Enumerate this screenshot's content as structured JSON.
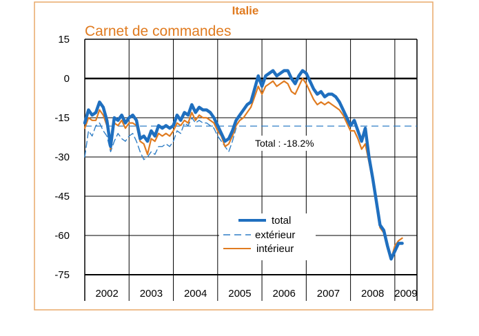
{
  "chart_data": {
    "type": "line",
    "title": "Italie",
    "subtitle": "Carnet de commandes",
    "xlabel": "",
    "ylabel": "",
    "ylim": [
      -75,
      15
    ],
    "yticks": [
      15,
      0,
      -15,
      -30,
      -45,
      -60,
      -75
    ],
    "year_labels": [
      "2002",
      "2003",
      "2004",
      "2005",
      "2006",
      "2007",
      "2008",
      "2009"
    ],
    "x_range": [
      "2002-01",
      "2009-07"
    ],
    "grid": true,
    "legend_position": "bottom-center",
    "annotation": {
      "text": "Total : -18.2%",
      "value": -18.2
    },
    "colors": {
      "total": "#1f6fbf",
      "exterieur": "#2e7dc5",
      "interieur": "#e07b20",
      "title": "#e07b20",
      "frame": "#e8a868"
    },
    "series": [
      {
        "name": "total",
        "style": "solid-thick",
        "color": "#1f6fbf",
        "points": [
          [
            "2002-01",
            -17
          ],
          [
            "2002-02",
            -12
          ],
          [
            "2002-03",
            -14
          ],
          [
            "2002-04",
            -13
          ],
          [
            "2002-05",
            -9
          ],
          [
            "2002-06",
            -11
          ],
          [
            "2002-07",
            -16
          ],
          [
            "2002-08",
            -26
          ],
          [
            "2002-09",
            -15
          ],
          [
            "2002-10",
            -16
          ],
          [
            "2002-11",
            -14
          ],
          [
            "2002-12",
            -17
          ],
          [
            "2003-01",
            -15
          ],
          [
            "2003-02",
            -14
          ],
          [
            "2003-03",
            -16
          ],
          [
            "2003-04",
            -23
          ],
          [
            "2003-05",
            -22
          ],
          [
            "2003-06",
            -24
          ],
          [
            "2003-07",
            -20
          ],
          [
            "2003-08",
            -22
          ],
          [
            "2003-09",
            -18
          ],
          [
            "2003-10",
            -19
          ],
          [
            "2003-11",
            -18
          ],
          [
            "2003-12",
            -19
          ],
          [
            "2004-01",
            -18
          ],
          [
            "2004-02",
            -14
          ],
          [
            "2004-03",
            -16
          ],
          [
            "2004-04",
            -13
          ],
          [
            "2004-05",
            -14
          ],
          [
            "2004-06",
            -10
          ],
          [
            "2004-07",
            -13
          ],
          [
            "2004-08",
            -11
          ],
          [
            "2004-09",
            -12
          ],
          [
            "2004-10",
            -12
          ],
          [
            "2004-11",
            -13
          ],
          [
            "2004-12",
            -15
          ],
          [
            "2005-01",
            -18
          ],
          [
            "2005-02",
            -21
          ],
          [
            "2005-03",
            -24
          ],
          [
            "2005-04",
            -23
          ],
          [
            "2005-05",
            -20
          ],
          [
            "2005-06",
            -16
          ],
          [
            "2005-07",
            -14
          ],
          [
            "2005-08",
            -12
          ],
          [
            "2005-09",
            -10
          ],
          [
            "2005-10",
            -9
          ],
          [
            "2005-11",
            -4
          ],
          [
            "2005-12",
            1
          ],
          [
            "2006-01",
            -3
          ],
          [
            "2006-02",
            1
          ],
          [
            "2006-03",
            2
          ],
          [
            "2006-04",
            3
          ],
          [
            "2006-05",
            1
          ],
          [
            "2006-06",
            2
          ],
          [
            "2006-07",
            3
          ],
          [
            "2006-08",
            3
          ],
          [
            "2006-09",
            0
          ],
          [
            "2006-10",
            -2
          ],
          [
            "2006-11",
            1
          ],
          [
            "2006-12",
            3
          ],
          [
            "2007-01",
            2
          ],
          [
            "2007-02",
            -1
          ],
          [
            "2007-03",
            -4
          ],
          [
            "2007-04",
            -6
          ],
          [
            "2007-05",
            -5
          ],
          [
            "2007-06",
            -7
          ],
          [
            "2007-07",
            -6
          ],
          [
            "2007-08",
            -6
          ],
          [
            "2007-09",
            -7
          ],
          [
            "2007-10",
            -9
          ],
          [
            "2007-11",
            -12
          ],
          [
            "2007-12",
            -15
          ],
          [
            "2008-01",
            -18
          ],
          [
            "2008-02",
            -16
          ],
          [
            "2008-03",
            -20
          ],
          [
            "2008-04",
            -24
          ],
          [
            "2008-05",
            -19
          ],
          [
            "2008-06",
            -30
          ],
          [
            "2008-07",
            -38
          ],
          [
            "2008-08",
            -47
          ],
          [
            "2008-09",
            -56
          ],
          [
            "2008-10",
            -58
          ],
          [
            "2008-11",
            -64
          ],
          [
            "2008-12",
            -69
          ],
          [
            "2009-01",
            -66
          ],
          [
            "2009-02",
            -63
          ],
          [
            "2009-03",
            -63
          ]
        ]
      },
      {
        "name": "extérieur",
        "style": "dashed",
        "color": "#2e7dc5",
        "points": [
          [
            "2002-01",
            -30
          ],
          [
            "2002-02",
            -20
          ],
          [
            "2002-03",
            -22
          ],
          [
            "2002-04",
            -18
          ],
          [
            "2002-05",
            -17
          ],
          [
            "2002-06",
            -20
          ],
          [
            "2002-07",
            -22
          ],
          [
            "2002-08",
            -28
          ],
          [
            "2002-09",
            -24
          ],
          [
            "2002-10",
            -21
          ],
          [
            "2002-11",
            -23
          ],
          [
            "2002-12",
            -24
          ],
          [
            "2003-01",
            -22
          ],
          [
            "2003-02",
            -21
          ],
          [
            "2003-03",
            -24
          ],
          [
            "2003-04",
            -28
          ],
          [
            "2003-05",
            -31
          ],
          [
            "2003-06",
            -30
          ],
          [
            "2003-07",
            -28
          ],
          [
            "2003-08",
            -29
          ],
          [
            "2003-09",
            -26
          ],
          [
            "2003-10",
            -26
          ],
          [
            "2003-11",
            -25
          ],
          [
            "2003-12",
            -26
          ],
          [
            "2004-01",
            -24
          ],
          [
            "2004-02",
            -20
          ],
          [
            "2004-03",
            -21
          ],
          [
            "2004-04",
            -17
          ],
          [
            "2004-05",
            -18
          ],
          [
            "2004-06",
            -15
          ],
          [
            "2004-07",
            -17
          ],
          [
            "2004-08",
            -16
          ],
          [
            "2004-09",
            -17
          ],
          [
            "2004-10",
            -17
          ],
          [
            "2004-11",
            -18
          ],
          [
            "2004-12",
            -19
          ],
          [
            "2005-01",
            -22
          ],
          [
            "2005-02",
            -24
          ],
          [
            "2005-03",
            -26
          ],
          [
            "2005-04",
            -28
          ],
          [
            "2005-05",
            -24
          ],
          [
            "2005-06",
            -19
          ]
        ]
      },
      {
        "name": "intérieur",
        "style": "solid",
        "color": "#e07b20",
        "points": [
          [
            "2002-01",
            -19
          ],
          [
            "2002-02",
            -15
          ],
          [
            "2002-03",
            -16
          ],
          [
            "2002-04",
            -16
          ],
          [
            "2002-05",
            -12
          ],
          [
            "2002-06",
            -14
          ],
          [
            "2002-07",
            -18
          ],
          [
            "2002-08",
            -27
          ],
          [
            "2002-09",
            -17
          ],
          [
            "2002-10",
            -18
          ],
          [
            "2002-11",
            -16
          ],
          [
            "2002-12",
            -19
          ],
          [
            "2003-01",
            -17
          ],
          [
            "2003-02",
            -17
          ],
          [
            "2003-03",
            -18
          ],
          [
            "2003-04",
            -24
          ],
          [
            "2003-05",
            -25
          ],
          [
            "2003-06",
            -29
          ],
          [
            "2003-07",
            -23
          ],
          [
            "2003-08",
            -24
          ],
          [
            "2003-09",
            -21
          ],
          [
            "2003-10",
            -22
          ],
          [
            "2003-11",
            -21
          ],
          [
            "2003-12",
            -22
          ],
          [
            "2004-01",
            -20
          ],
          [
            "2004-02",
            -17
          ],
          [
            "2004-03",
            -18
          ],
          [
            "2004-04",
            -16
          ],
          [
            "2004-05",
            -17
          ],
          [
            "2004-06",
            -13
          ],
          [
            "2004-07",
            -16
          ],
          [
            "2004-08",
            -14
          ],
          [
            "2004-09",
            -15
          ],
          [
            "2004-10",
            -15
          ],
          [
            "2004-11",
            -16
          ],
          [
            "2004-12",
            -17
          ],
          [
            "2005-01",
            -20
          ],
          [
            "2005-02",
            -22
          ],
          [
            "2005-03",
            -26
          ],
          [
            "2005-04",
            -25
          ],
          [
            "2005-05",
            -22
          ],
          [
            "2005-06",
            -18
          ],
          [
            "2005-07",
            -16
          ],
          [
            "2005-08",
            -15
          ],
          [
            "2005-09",
            -13
          ],
          [
            "2005-10",
            -11
          ],
          [
            "2005-11",
            -7
          ],
          [
            "2005-12",
            -3
          ],
          [
            "2006-01",
            -6
          ],
          [
            "2006-02",
            -3
          ],
          [
            "2006-03",
            -2
          ],
          [
            "2006-04",
            -1
          ],
          [
            "2006-05",
            -3
          ],
          [
            "2006-06",
            -2
          ],
          [
            "2006-07",
            -1
          ],
          [
            "2006-08",
            -2
          ],
          [
            "2006-09",
            -5
          ],
          [
            "2006-10",
            -6
          ],
          [
            "2006-11",
            -3
          ],
          [
            "2006-12",
            0
          ],
          [
            "2007-01",
            -2
          ],
          [
            "2007-02",
            -5
          ],
          [
            "2007-03",
            -8
          ],
          [
            "2007-04",
            -10
          ],
          [
            "2007-05",
            -9
          ],
          [
            "2007-06",
            -10
          ],
          [
            "2007-07",
            -9
          ],
          [
            "2007-08",
            -10
          ],
          [
            "2007-09",
            -11
          ],
          [
            "2007-10",
            -12
          ],
          [
            "2007-11",
            -14
          ],
          [
            "2007-12",
            -17
          ],
          [
            "2008-01",
            -20
          ],
          [
            "2008-02",
            -20
          ],
          [
            "2008-03",
            -23
          ],
          [
            "2008-04",
            -27
          ],
          [
            "2008-05",
            -25
          ],
          [
            "2008-06",
            -32
          ],
          [
            "2008-07",
            -39
          ],
          [
            "2008-08",
            -48
          ],
          [
            "2008-09",
            -57
          ],
          [
            "2008-10",
            -59
          ],
          [
            "2008-11",
            -65
          ],
          [
            "2008-12",
            -69
          ],
          [
            "2009-01",
            -64
          ],
          [
            "2009-02",
            -62
          ],
          [
            "2009-03",
            -61
          ]
        ]
      }
    ]
  }
}
